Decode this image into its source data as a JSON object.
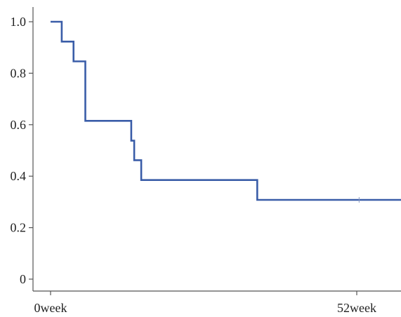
{
  "chart_data": {
    "type": "line",
    "title": "",
    "xlabel": "",
    "ylabel": "",
    "x_unit": "week",
    "xlim": [
      0,
      60
    ],
    "ylim": [
      0,
      1.0
    ],
    "x_ticks": [
      {
        "value": 0,
        "label": "0week"
      },
      {
        "value": 52,
        "label": "52week"
      }
    ],
    "y_ticks": [
      {
        "value": 0,
        "label": "0"
      },
      {
        "value": 0.2,
        "label": "0.2"
      },
      {
        "value": 0.4,
        "label": "0.4"
      },
      {
        "value": 0.6,
        "label": "0.6"
      },
      {
        "value": 0.8,
        "label": "0.8"
      },
      {
        "value": 1.0,
        "label": "1.0"
      }
    ],
    "grid": false,
    "legend": "none",
    "step": "post",
    "series": [
      {
        "color": "#3a5da8",
        "x": [
          0,
          1.9,
          3.9,
          5.9,
          13.7,
          14.0,
          14.2,
          15.4,
          35.1,
          60
        ],
        "y": [
          1.0,
          0.923,
          0.846,
          0.615,
          0.538,
          0.538,
          0.462,
          0.385,
          0.308,
          0.308
        ],
        "censored": [
          {
            "x": 52.4,
            "y": 0.308
          }
        ]
      }
    ]
  }
}
